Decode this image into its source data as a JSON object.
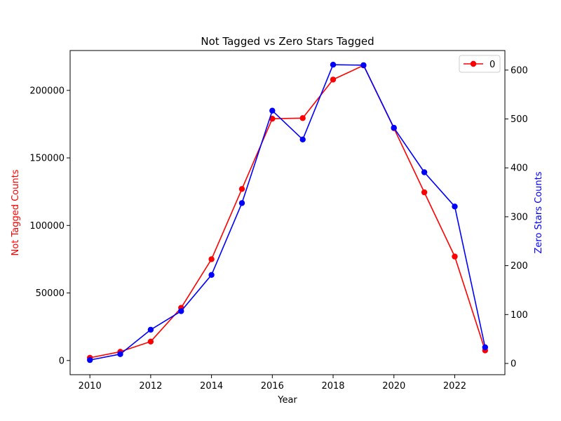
{
  "chart_data": {
    "type": "line",
    "title": "Not Tagged vs Zero Stars Tagged",
    "xlabel": "Year",
    "x": [
      2010,
      2011,
      2012,
      2013,
      2014,
      2015,
      2016,
      2017,
      2018,
      2019,
      2020,
      2021,
      2022,
      2023
    ],
    "xlim": [
      2009.35,
      2023.65
    ],
    "xticks": [
      "2010",
      "2012",
      "2014",
      "2016",
      "2018",
      "2020",
      "2022"
    ],
    "xtick_values": [
      2010,
      2012,
      2014,
      2016,
      2018,
      2020,
      2022
    ],
    "left_axis": {
      "label": "Not Tagged Counts",
      "color": "#ff0000",
      "ylim": [
        -10500,
        229500
      ],
      "ticks": [
        "0",
        "50000",
        "100000",
        "150000",
        "200000"
      ],
      "tick_values": [
        0,
        50000,
        100000,
        150000,
        200000
      ]
    },
    "right_axis": {
      "label": "Zero Stars Counts",
      "color": "#0000ff",
      "ylim": [
        -23,
        640
      ],
      "ticks": [
        "0",
        "100",
        "200",
        "300",
        "400",
        "500",
        "600"
      ],
      "tick_values": [
        0,
        100,
        200,
        300,
        400,
        500,
        600
      ]
    },
    "series": [
      {
        "axis": "left",
        "color": "#ff0000",
        "values": [
          2000,
          6500,
          14000,
          39000,
          75000,
          127000,
          179000,
          179500,
          208000,
          218500,
          172000,
          124500,
          77000,
          7500
        ]
      },
      {
        "axis": "right",
        "color": "#0000ff",
        "values": [
          7,
          19,
          69,
          107,
          181,
          328,
          517,
          458,
          611,
          610,
          482,
          391,
          321,
          33
        ]
      }
    ],
    "legend": {
      "placement": "top-right",
      "entries": [
        "0"
      ]
    },
    "grid": false
  }
}
